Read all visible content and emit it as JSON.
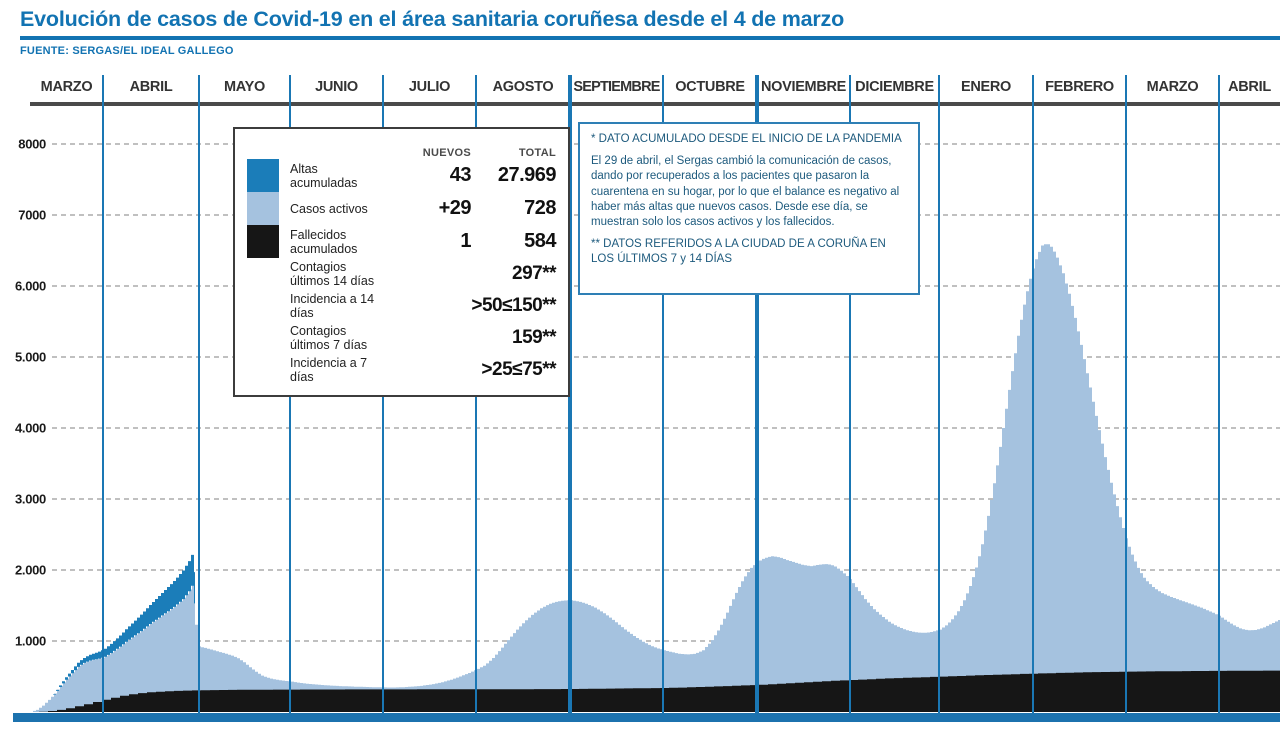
{
  "page": {
    "title": "Evolución de casos de Covid-19 en el área sanitaria coruñesa desde el 4 de marzo",
    "source": "FUENTE: SERGAS/EL IDEAL GALLEGO"
  },
  "legend": {
    "headers": {
      "nuevos": "NUEVOS",
      "total": "TOTAL"
    },
    "rows": [
      {
        "label": "Altas acumuladas",
        "nuevos": "43",
        "total": "27.969",
        "swatch_color": "#1b7db9"
      },
      {
        "label": "Casos activos",
        "nuevos": "+29",
        "total": "728",
        "swatch_color": "#a5c2df"
      },
      {
        "label": "Fallecidos acumulados",
        "nuevos": "1",
        "total": "584",
        "swatch_color": "#161616"
      },
      {
        "label": "Contagios últimos 14 días",
        "total": "297**"
      },
      {
        "label": "Incidencia a 14 días",
        "total": ">50≤150**"
      },
      {
        "label": "Contagios últimos 7 días",
        "total": "159**"
      },
      {
        "label": "Incidencia a 7 días",
        "total": ">25≤75**"
      }
    ]
  },
  "note": {
    "title": "* DATO ACUMULADO DESDE EL INICIO DE LA PANDEMIA",
    "body": "El 29 de abril, el Sergas cambió la comunicación de casos, dando por recuperados a los pacientes que pasaron la cuarentena en su hogar, por lo que el balance es negativo al haber más altas que nuevos casos. Desde ese día, se muestran solo los casos activos y los fallecidos.",
    "footer": "** DATOS REFERIDOS A LA CIUDAD DE A CORUÑA EN LOS ÚLTIMOS 7 y 14 DÍAS"
  },
  "chart_data": {
    "type": "area",
    "title": "Evolución de casos de Covid-19 en el área sanitaria coruñesa desde el 4 de marzo",
    "stacked": true,
    "grid": "dashed-horizontal",
    "months": [
      "MARZO",
      "ABRIL",
      "MAYO",
      "JUNIO",
      "JULIO",
      "AGOSTO",
      "SEPTIEMBRE",
      "OCTUBRE",
      "NOVIEMBRE",
      "DICIEMBRE",
      "ENERO",
      "FEBRERO",
      "MARZO",
      "ABRIL"
    ],
    "month_start_x": [
      30,
      103,
      199,
      290,
      383,
      476,
      570,
      663,
      757,
      850,
      939,
      1033,
      1126,
      1219,
      1280
    ],
    "thick_month_lines_x": [
      570,
      757
    ],
    "y_ticks": [
      {
        "value": 8000,
        "label": "8000"
      },
      {
        "value": 7000,
        "label": "7000"
      },
      {
        "value": 6000,
        "label": "6.000"
      },
      {
        "value": 5000,
        "label": "5.000"
      },
      {
        "value": 4000,
        "label": "4.000"
      },
      {
        "value": 3000,
        "label": "3.000"
      },
      {
        "value": 2000,
        "label": "2.000"
      },
      {
        "value": 1000,
        "label": "1.000"
      }
    ],
    "ylim": [
      0,
      8500
    ],
    "colors": {
      "altas": "#1b7db9",
      "casos_activos": "#a5c2df",
      "fallecidos": "#161616",
      "month_line": "#1a77b4",
      "baseline_bar": "#1c72ae",
      "grid": "#9b9b9b",
      "accent_blue": "#1273b2"
    },
    "series": [
      {
        "name": "Fallecidos acumulados",
        "role": "stack-bottom",
        "color": "#161616",
        "points": [
          [
            30,
            0
          ],
          [
            45,
            8
          ],
          [
            60,
            35
          ],
          [
            75,
            80
          ],
          [
            90,
            130
          ],
          [
            103,
            175
          ],
          [
            115,
            215
          ],
          [
            127,
            245
          ],
          [
            139,
            268
          ],
          [
            151,
            282
          ],
          [
            163,
            292
          ],
          [
            175,
            298
          ],
          [
            185,
            302
          ],
          [
            197,
            306
          ],
          [
            215,
            310
          ],
          [
            240,
            313
          ],
          [
            270,
            315
          ],
          [
            310,
            317
          ],
          [
            360,
            318
          ],
          [
            410,
            319
          ],
          [
            476,
            320
          ],
          [
            530,
            322
          ],
          [
            570,
            324
          ],
          [
            600,
            328
          ],
          [
            630,
            333
          ],
          [
            663,
            338
          ],
          [
            685,
            347
          ],
          [
            710,
            358
          ],
          [
            735,
            371
          ],
          [
            757,
            383
          ],
          [
            780,
            400
          ],
          [
            805,
            420
          ],
          [
            828,
            437
          ],
          [
            848,
            450
          ],
          [
            870,
            464
          ],
          [
            890,
            476
          ],
          [
            915,
            488
          ],
          [
            939,
            498
          ],
          [
            965,
            512
          ],
          [
            990,
            524
          ],
          [
            1015,
            534
          ],
          [
            1033,
            541
          ],
          [
            1060,
            552
          ],
          [
            1090,
            561
          ],
          [
            1126,
            569
          ],
          [
            1160,
            574
          ],
          [
            1200,
            578
          ],
          [
            1240,
            581
          ],
          [
            1280,
            584
          ]
        ]
      },
      {
        "name": "Casos activos",
        "role": "stack-top-boundary",
        "color": "#a5c2df",
        "points": [
          [
            30,
            0
          ],
          [
            36,
            30
          ],
          [
            42,
            90
          ],
          [
            48,
            170
          ],
          [
            54,
            260
          ],
          [
            60,
            370
          ],
          [
            66,
            470
          ],
          [
            72,
            560
          ],
          [
            78,
            650
          ],
          [
            84,
            700
          ],
          [
            90,
            730
          ],
          [
            96,
            745
          ],
          [
            103,
            770
          ],
          [
            110,
            830
          ],
          [
            118,
            910
          ],
          [
            126,
            1000
          ],
          [
            134,
            1080
          ],
          [
            142,
            1160
          ],
          [
            150,
            1250
          ],
          [
            158,
            1330
          ],
          [
            166,
            1410
          ],
          [
            174,
            1490
          ],
          [
            182,
            1590
          ],
          [
            188,
            1700
          ],
          [
            193,
            1830
          ],
          [
            196,
            930
          ],
          [
            205,
            900
          ],
          [
            215,
            860
          ],
          [
            225,
            820
          ],
          [
            232,
            790
          ],
          [
            238,
            750
          ],
          [
            244,
            690
          ],
          [
            250,
            620
          ],
          [
            256,
            555
          ],
          [
            262,
            505
          ],
          [
            270,
            470
          ],
          [
            278,
            450
          ],
          [
            283,
            440
          ],
          [
            290,
            430
          ],
          [
            300,
            408
          ],
          [
            312,
            390
          ],
          [
            326,
            375
          ],
          [
            340,
            364
          ],
          [
            356,
            356
          ],
          [
            370,
            350
          ],
          [
            383,
            346
          ],
          [
            392,
            344
          ],
          [
            400,
            348
          ],
          [
            410,
            356
          ],
          [
            420,
            368
          ],
          [
            430,
            388
          ],
          [
            440,
            415
          ],
          [
            450,
            455
          ],
          [
            460,
            505
          ],
          [
            468,
            550
          ],
          [
            476,
            600
          ],
          [
            484,
            660
          ],
          [
            492,
            760
          ],
          [
            500,
            890
          ],
          [
            508,
            1030
          ],
          [
            516,
            1160
          ],
          [
            524,
            1280
          ],
          [
            532,
            1380
          ],
          [
            540,
            1460
          ],
          [
            548,
            1520
          ],
          [
            556,
            1555
          ],
          [
            563,
            1570
          ],
          [
            570,
            1575
          ],
          [
            578,
            1555
          ],
          [
            586,
            1520
          ],
          [
            594,
            1470
          ],
          [
            602,
            1400
          ],
          [
            610,
            1320
          ],
          [
            618,
            1230
          ],
          [
            626,
            1140
          ],
          [
            634,
            1060
          ],
          [
            642,
            990
          ],
          [
            650,
            930
          ],
          [
            657,
            895
          ],
          [
            663,
            870
          ],
          [
            670,
            845
          ],
          [
            678,
            820
          ],
          [
            686,
            810
          ],
          [
            694,
            820
          ],
          [
            702,
            870
          ],
          [
            710,
            990
          ],
          [
            718,
            1170
          ],
          [
            726,
            1400
          ],
          [
            734,
            1650
          ],
          [
            742,
            1870
          ],
          [
            750,
            2030
          ],
          [
            757,
            2120
          ],
          [
            764,
            2170
          ],
          [
            771,
            2195
          ],
          [
            778,
            2180
          ],
          [
            786,
            2140
          ],
          [
            794,
            2105
          ],
          [
            802,
            2070
          ],
          [
            810,
            2055
          ],
          [
            818,
            2075
          ],
          [
            826,
            2085
          ],
          [
            833,
            2060
          ],
          [
            840,
            1990
          ],
          [
            848,
            1890
          ],
          [
            856,
            1740
          ],
          [
            864,
            1590
          ],
          [
            872,
            1460
          ],
          [
            880,
            1360
          ],
          [
            888,
            1270
          ],
          [
            896,
            1205
          ],
          [
            904,
            1160
          ],
          [
            912,
            1130
          ],
          [
            920,
            1115
          ],
          [
            928,
            1120
          ],
          [
            939,
            1160
          ],
          [
            946,
            1230
          ],
          [
            952,
            1320
          ],
          [
            958,
            1440
          ],
          [
            964,
            1600
          ],
          [
            970,
            1810
          ],
          [
            976,
            2080
          ],
          [
            982,
            2420
          ],
          [
            988,
            2830
          ],
          [
            994,
            3300
          ],
          [
            1000,
            3820
          ],
          [
            1006,
            4360
          ],
          [
            1012,
            4890
          ],
          [
            1018,
            5380
          ],
          [
            1024,
            5810
          ],
          [
            1030,
            6160
          ],
          [
            1036,
            6420
          ],
          [
            1041,
            6570
          ],
          [
            1046,
            6600
          ],
          [
            1051,
            6540
          ],
          [
            1056,
            6400
          ],
          [
            1062,
            6180
          ],
          [
            1068,
            5890
          ],
          [
            1074,
            5550
          ],
          [
            1080,
            5170
          ],
          [
            1086,
            4770
          ],
          [
            1092,
            4370
          ],
          [
            1098,
            3970
          ],
          [
            1104,
            3590
          ],
          [
            1110,
            3230
          ],
          [
            1116,
            2900
          ],
          [
            1121,
            2640
          ],
          [
            1126,
            2400
          ],
          [
            1132,
            2180
          ],
          [
            1138,
            2000
          ],
          [
            1144,
            1870
          ],
          [
            1152,
            1760
          ],
          [
            1160,
            1680
          ],
          [
            1170,
            1620
          ],
          [
            1180,
            1570
          ],
          [
            1190,
            1520
          ],
          [
            1200,
            1470
          ],
          [
            1210,
            1410
          ],
          [
            1219,
            1350
          ],
          [
            1226,
            1280
          ],
          [
            1233,
            1220
          ],
          [
            1240,
            1170
          ],
          [
            1247,
            1150
          ],
          [
            1254,
            1155
          ],
          [
            1262,
            1185
          ],
          [
            1270,
            1240
          ],
          [
            1280,
            1310
          ]
        ]
      },
      {
        "name": "Altas acumuladas",
        "role": "band-above-top",
        "color": "#1b7db9",
        "points": [
          [
            50,
            0
          ],
          [
            56,
            15
          ],
          [
            62,
            30
          ],
          [
            70,
            45
          ],
          [
            78,
            60
          ],
          [
            86,
            75
          ],
          [
            94,
            90
          ],
          [
            103,
            110
          ],
          [
            112,
            135
          ],
          [
            122,
            165
          ],
          [
            132,
            200
          ],
          [
            142,
            240
          ],
          [
            152,
            280
          ],
          [
            162,
            320
          ],
          [
            172,
            360
          ],
          [
            180,
            395
          ],
          [
            186,
            420
          ],
          [
            191,
            435
          ],
          [
            194,
            440
          ],
          [
            195,
            0
          ]
        ]
      }
    ]
  }
}
